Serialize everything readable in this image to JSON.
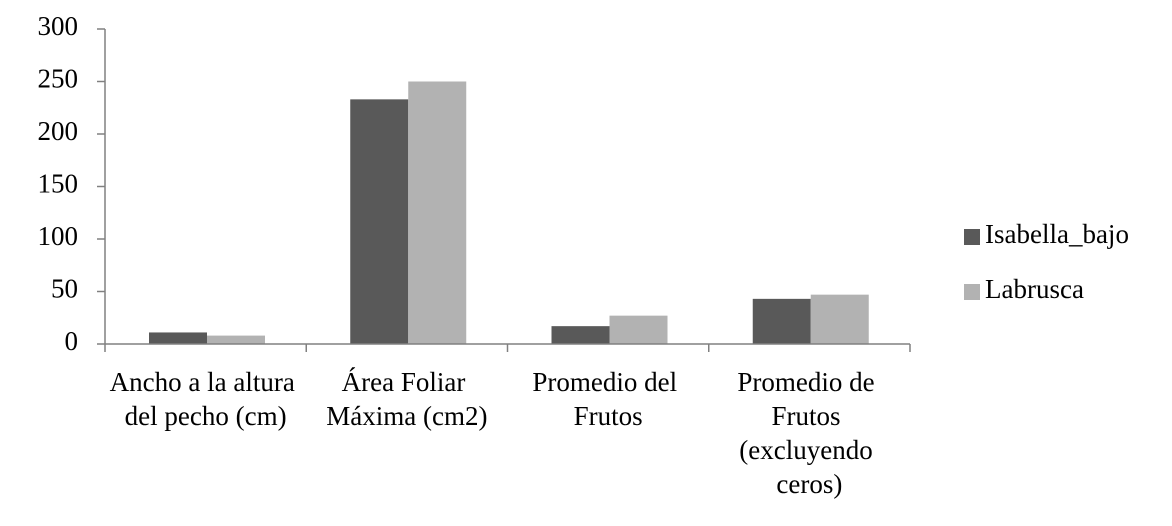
{
  "chart_data": {
    "type": "bar",
    "categories": [
      "Ancho a la altura del pecho (cm)",
      "Área Foliar Máxima (cm2)",
      "Promedio del Frutos",
      "Promedio de Frutos (excluyendo ceros)"
    ],
    "series": [
      {
        "name": "Isabella_bajo",
        "color": "#595959",
        "values": [
          11,
          233,
          17,
          43
        ]
      },
      {
        "name": "Labrusca",
        "color": "#b2b2b2",
        "values": [
          8,
          250,
          27,
          47
        ]
      }
    ],
    "ylim": [
      0,
      300
    ],
    "yticks": [
      0,
      50,
      100,
      150,
      200,
      250,
      300
    ],
    "legend": "right"
  }
}
